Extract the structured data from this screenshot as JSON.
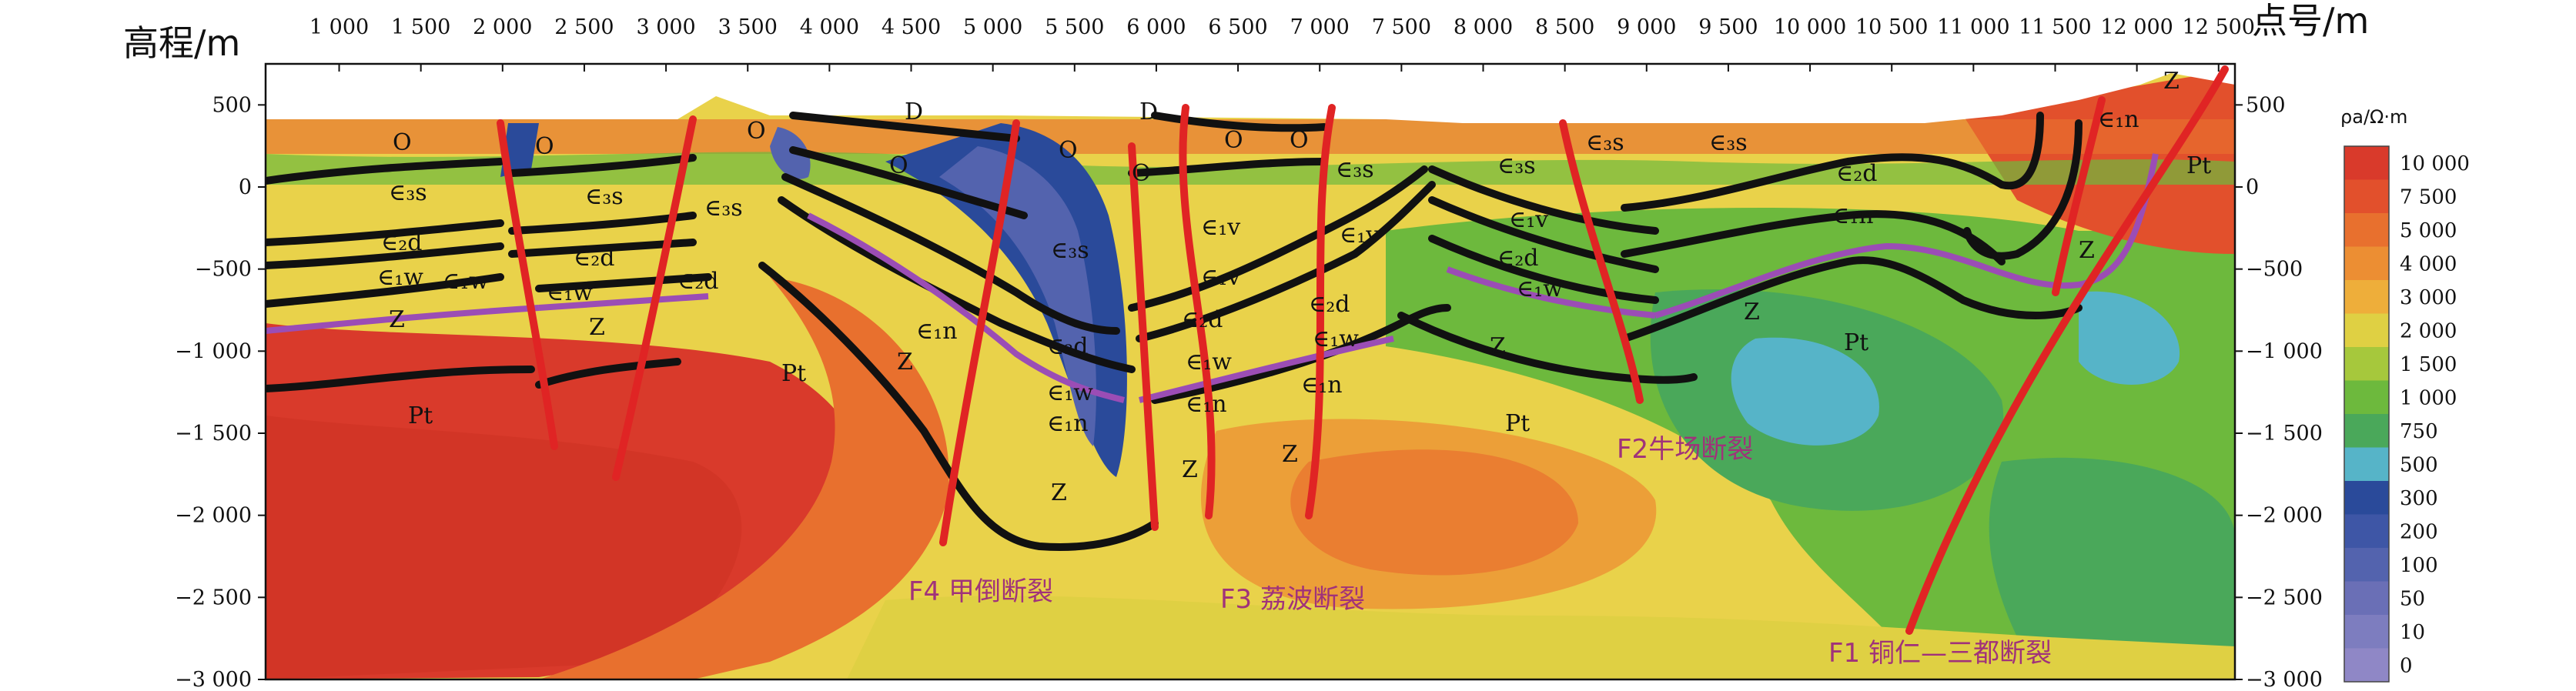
{
  "axes": {
    "y_title": "高程/m",
    "x_title": "点号/m",
    "x_ticks": [
      "1 000",
      "1 500",
      "2 000",
      "2 500",
      "3 000",
      "3 500",
      "4 000",
      "4 500",
      "5 000",
      "5 500",
      "6 000",
      "6 500",
      "7 000",
      "7 500",
      "8 000",
      "8 500",
      "9 000",
      "9 500",
      "10 000",
      "10 500",
      "11 000",
      "11 500",
      "12 000",
      "12 500"
    ],
    "y_ticks": [
      "500",
      "0",
      "−500",
      "−1 000",
      "−1 500",
      "−2 000",
      "−2 500",
      "−3 000"
    ],
    "y_ticks_right": [
      "500",
      "0",
      "−500",
      "−1 000",
      "−1 500",
      "−2 000",
      "−2 500",
      "−3 000"
    ],
    "x_range": [
      550,
      12600
    ],
    "y_range": [
      -3000,
      750
    ]
  },
  "legend": {
    "title": "ρa/Ω·m",
    "items": [
      {
        "label": "10 000",
        "color": "#d93a2b"
      },
      {
        "label": "7 500",
        "color": "#e2502c"
      },
      {
        "label": "5 000",
        "color": "#e8702e"
      },
      {
        "label": "4 000",
        "color": "#ec8e33"
      },
      {
        "label": "3 000",
        "color": "#eeae3a"
      },
      {
        "label": "2 000",
        "color": "#dfd043"
      },
      {
        "label": "1 500",
        "color": "#a6c83c"
      },
      {
        "label": "1 000",
        "color": "#6db93d"
      },
      {
        "label": "750",
        "color": "#4aa85a"
      },
      {
        "label": "500",
        "color": "#56b4c8"
      },
      {
        "label": "300",
        "color": "#2a4a9a"
      },
      {
        "label": "200",
        "color": "#3e56a6"
      },
      {
        "label": "100",
        "color": "#5363ae"
      },
      {
        "label": "50",
        "color": "#6a6fb6"
      },
      {
        "label": "10",
        "color": "#7d7dbf"
      },
      {
        "label": "0",
        "color": "#8f87c6"
      }
    ]
  },
  "faults": [
    {
      "id": "F4",
      "label": "F4 甲倒断裂"
    },
    {
      "id": "F3",
      "label": "F3 荔波断裂"
    },
    {
      "id": "F2",
      "label": "F2牛场断裂"
    },
    {
      "id": "F1",
      "label": "F1 铜仁—三都断裂"
    }
  ],
  "units": {
    "Pt": "Pt",
    "Z": "Z",
    "O": "O",
    "D": "D",
    "e3s": "∈₃s",
    "e2d": "∈₂d",
    "e1w": "∈₁w",
    "e1n": "∈₁n",
    "e1v": "∈₁v"
  }
}
